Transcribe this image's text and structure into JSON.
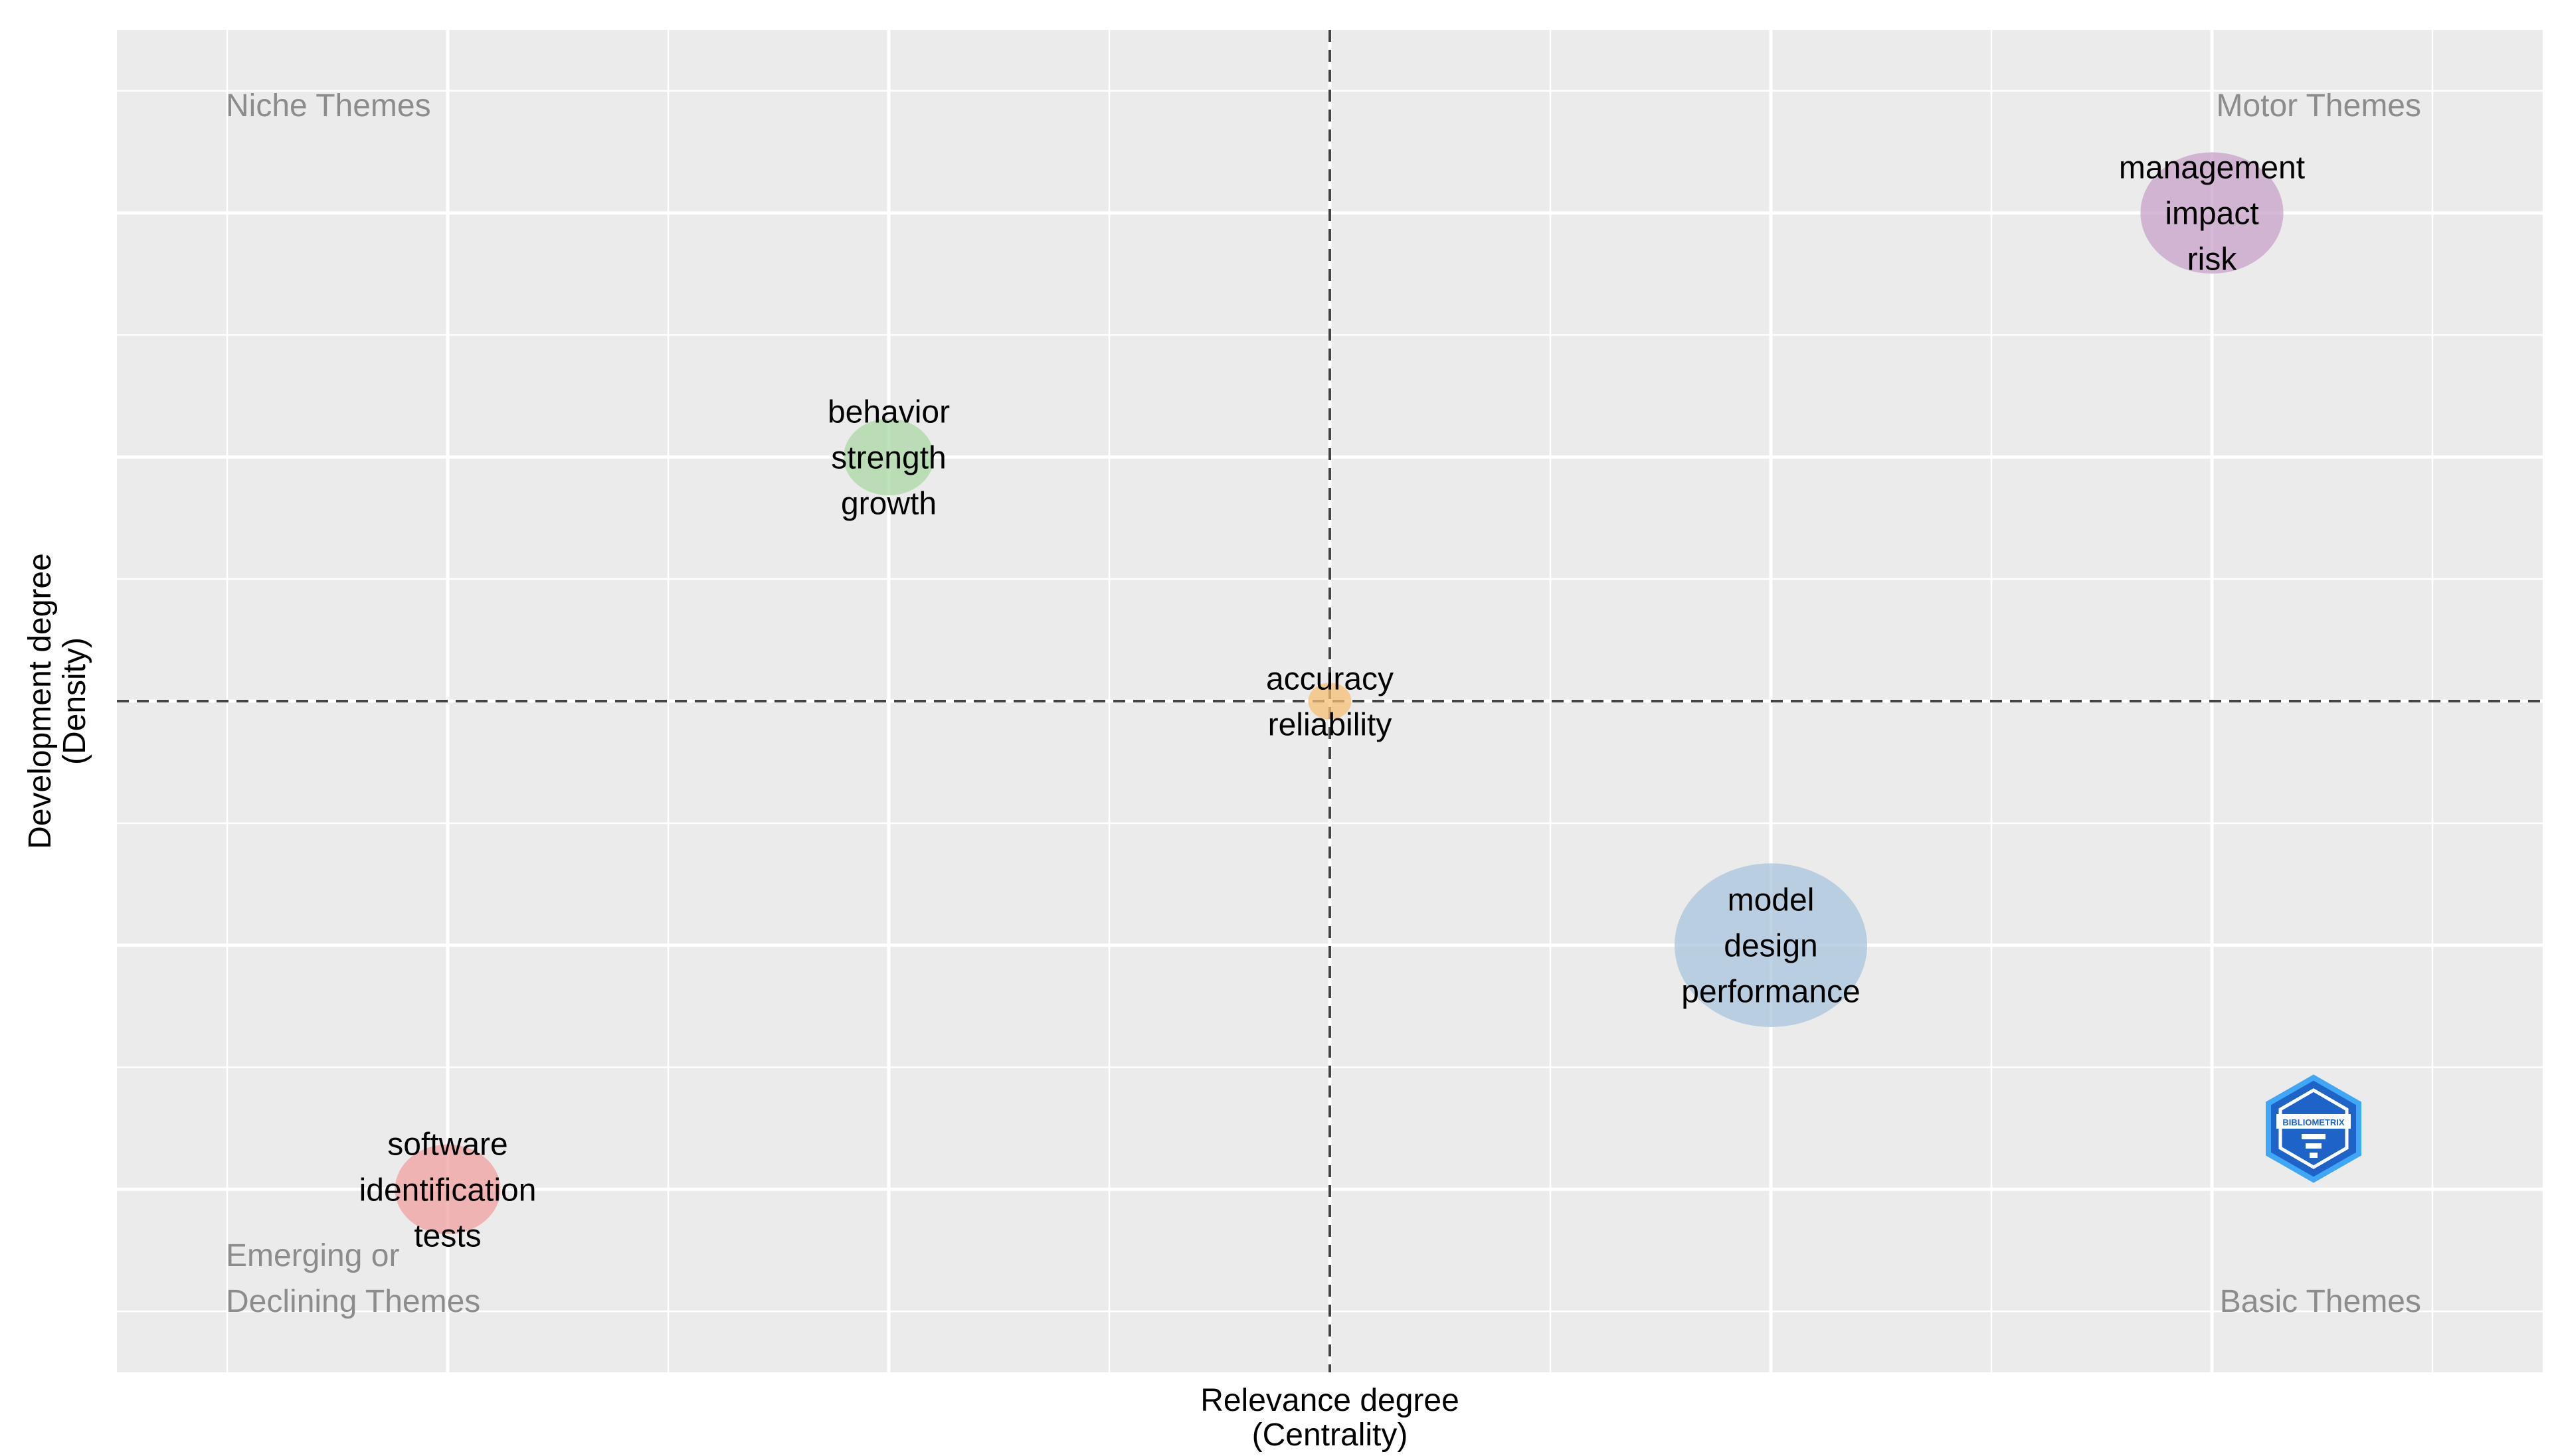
{
  "chart_data": {
    "type": "scatter",
    "title": "",
    "xlabel": [
      "Relevance degree",
      "(Centrality)"
    ],
    "ylabel": [
      "Development degree",
      "(Density)"
    ],
    "grid": true,
    "quadrant_labels": {
      "top_left": [
        "Niche Themes"
      ],
      "top_right": [
        "Motor Themes"
      ],
      "bottom_left": [
        "Emerging or",
        "Declining Themes"
      ],
      "bottom_right": [
        "Basic Themes"
      ]
    },
    "reference_lines": {
      "x": 0,
      "y": 0
    },
    "xlim": [
      -2.75,
      2.75
    ],
    "ylim": [
      -2.75,
      2.75
    ],
    "clusters": [
      {
        "x": 2,
        "y": 2,
        "size": 0.55,
        "color": "#c8a2c8",
        "labels": [
          "management",
          "impact",
          "risk"
        ]
      },
      {
        "x": -1,
        "y": 1,
        "size": 0.22,
        "color": "#a9d8a4",
        "labels": [
          "behavior",
          "strength",
          "growth"
        ]
      },
      {
        "x": 0,
        "y": 0,
        "size": 0.05,
        "color": "#f7bf75",
        "labels": [
          "accuracy",
          "reliability"
        ]
      },
      {
        "x": 1,
        "y": -1,
        "size": 1,
        "color": "#a8c4dc",
        "labels": [
          "model",
          "design",
          "performance"
        ]
      },
      {
        "x": -2,
        "y": -2,
        "size": 0.3,
        "color": "#f2a0a0",
        "labels": [
          "software",
          "identification",
          "tests"
        ]
      }
    ]
  },
  "logo": {
    "name": "bibliometrix-logo",
    "text": "BIBLIOMETRIX"
  }
}
